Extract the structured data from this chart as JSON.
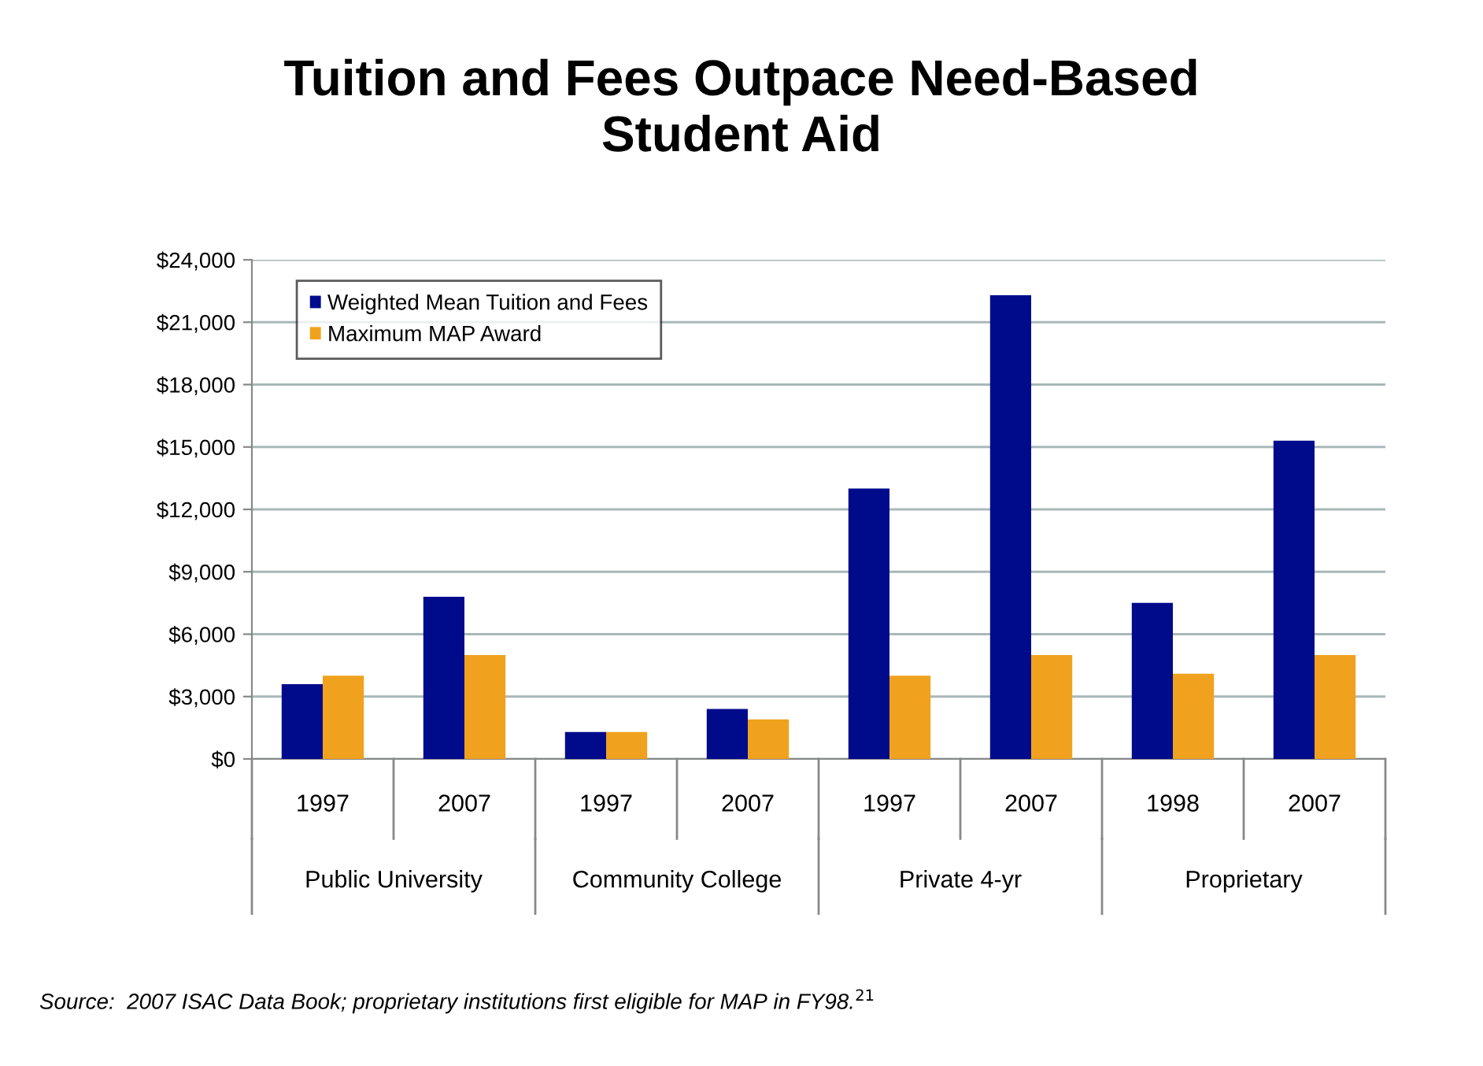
{
  "chart_data": {
    "type": "bar",
    "title": "Tuition and Fees Outpace Need-Based\nStudent Aid",
    "categories": [
      "1997",
      "2007",
      "1997",
      "2007",
      "1997",
      "2007",
      "1998",
      "2007"
    ],
    "series": [
      {
        "name": "Weighted Mean Tuition and Fees",
        "color": "#000b8c",
        "values": [
          3600,
          7800,
          1300,
          2400,
          13000,
          22300,
          7500,
          15300
        ]
      },
      {
        "name": "Maximum MAP Award",
        "color": "#f0a21e",
        "values": [
          4000,
          5000,
          1300,
          1900,
          4000,
          5000,
          4100,
          5000
        ]
      }
    ],
    "ylim": [
      0,
      24000
    ],
    "yticks": [
      {
        "value": 0,
        "label": "$0"
      },
      {
        "value": 3000,
        "label": "$3,000"
      },
      {
        "value": 6000,
        "label": "$6,000"
      },
      {
        "value": 9000,
        "label": "$9,000"
      },
      {
        "value": 12000,
        "label": "$12,000"
      },
      {
        "value": 15000,
        "label": "$15,000"
      },
      {
        "value": 18000,
        "label": "$18,000"
      },
      {
        "value": 21000,
        "label": "$21,000"
      },
      {
        "value": 24000,
        "label": "$24,000"
      }
    ],
    "grid": "y",
    "legend": "top left",
    "annotations": [
      "Public University",
      "Community College",
      "Private 4-yr",
      "Proprietary",
      "Source:  2007 ISAC Data Book; proprietary institutions first eligible for MAP in FY98.$^{21}$"
    ]
  }
}
